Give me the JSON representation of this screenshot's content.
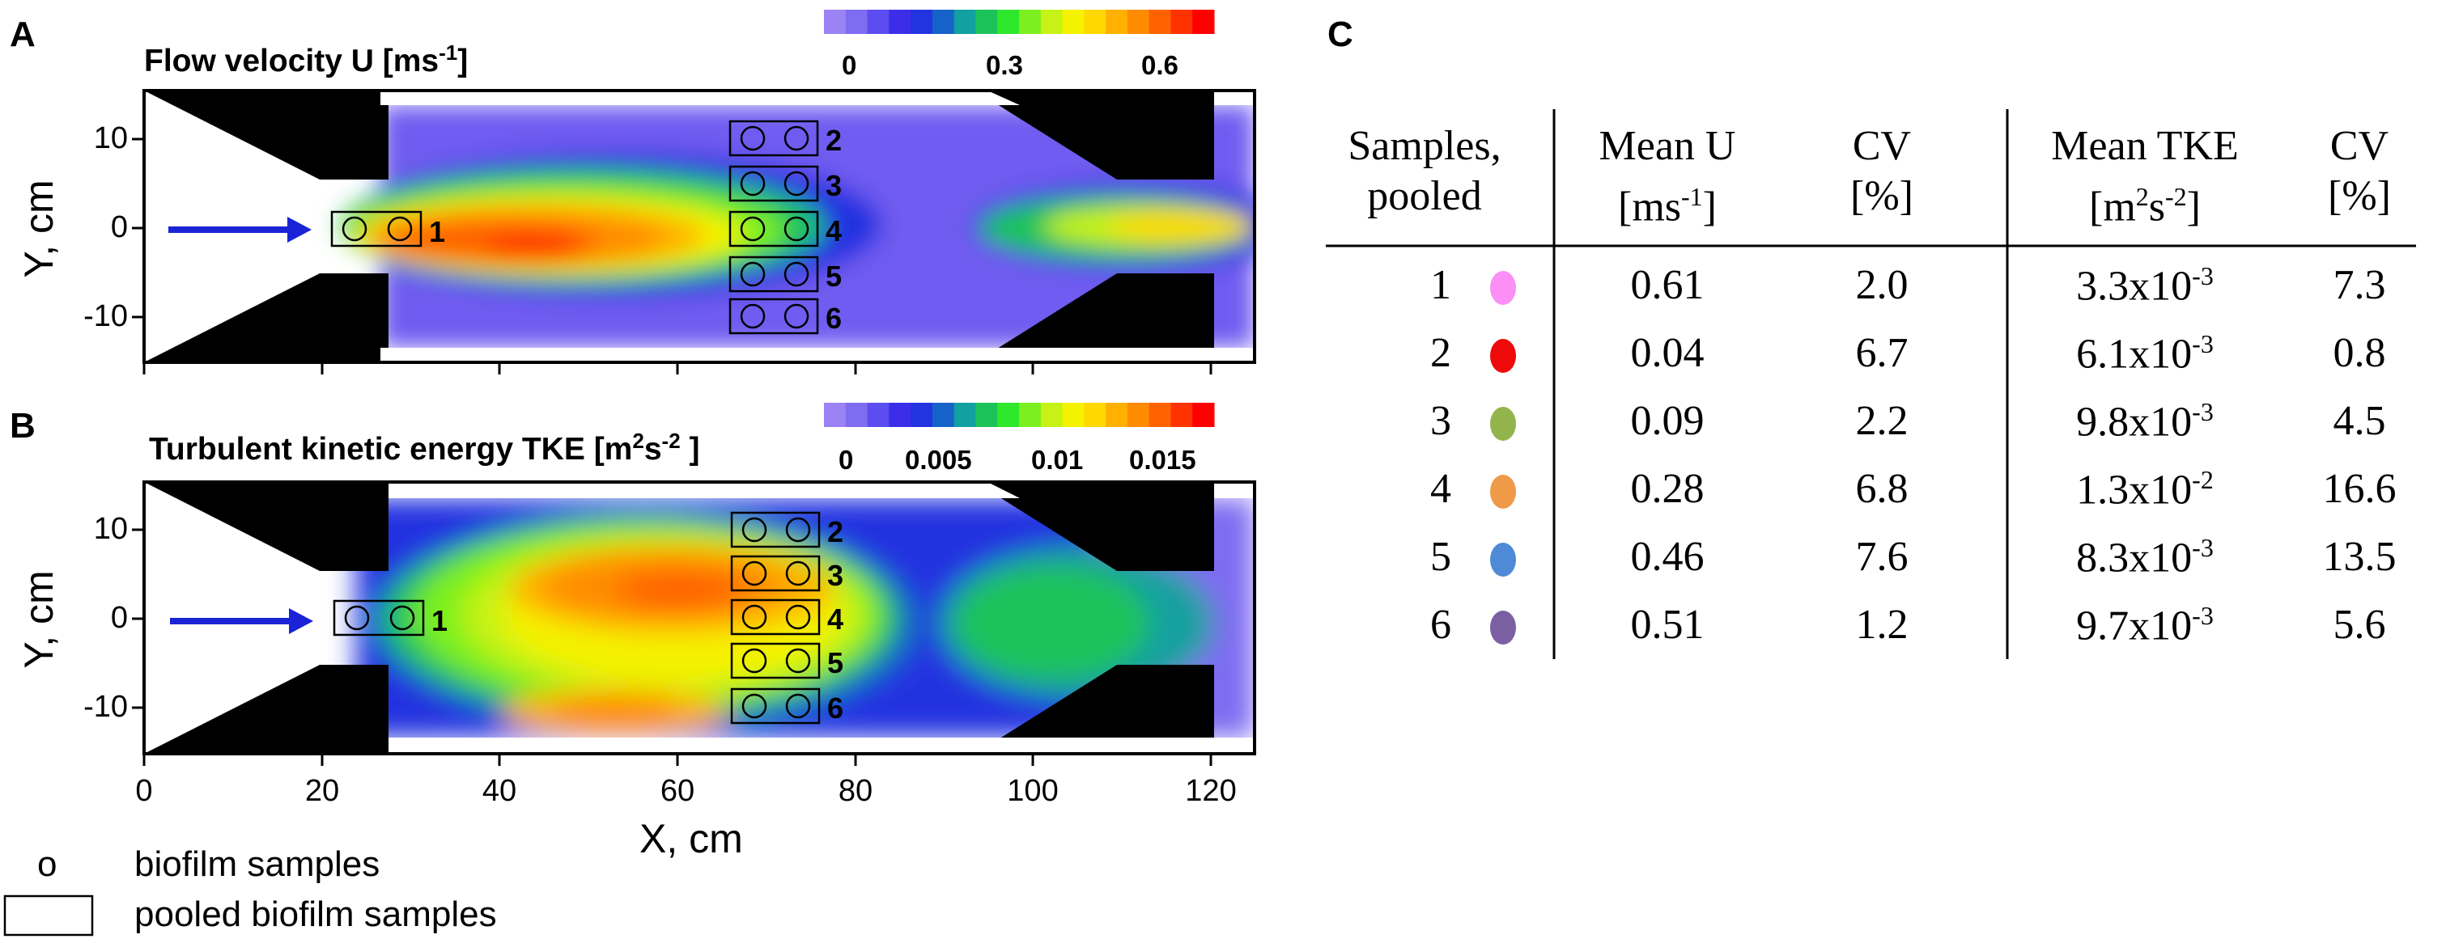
{
  "panels": {
    "A": {
      "letter": "A",
      "title_main": "Flow velocity U [ms",
      "title_sup": "-1",
      "title_end": "]",
      "colorbar_ticks": [
        "0",
        "0.3",
        "0.6"
      ],
      "colorbar_colors": [
        "#9b82f5",
        "#7e6cf1",
        "#5b4df0",
        "#3c2ee8",
        "#2233e0",
        "#1563c8",
        "#12a0a0",
        "#1cc35a",
        "#2ee82b",
        "#7cf01f",
        "#c6f215",
        "#f4f200",
        "#ffd800",
        "#ffb000",
        "#ff8c00",
        "#ff6200",
        "#ff3300",
        "#ff0000"
      ],
      "y_label": "Y, cm",
      "y_ticks": [
        "10",
        "0",
        "-10"
      ],
      "sample_labels": [
        "1",
        "2",
        "3",
        "4",
        "5",
        "6"
      ]
    },
    "B": {
      "letter": "B",
      "title_main": "Turbulent kinetic energy TKE [m",
      "title_sup1": "2",
      "title_mid": "s",
      "title_sup2": "-2",
      "title_end": " ]",
      "colorbar_ticks": [
        "0",
        "0.005",
        "0.01",
        "0.015"
      ],
      "colorbar_colors": [
        "#9b82f5",
        "#7e6cf1",
        "#5b4df0",
        "#3c2ee8",
        "#2233e0",
        "#1563c8",
        "#12a0a0",
        "#1cc35a",
        "#2ee82b",
        "#7cf01f",
        "#c6f215",
        "#f4f200",
        "#ffd800",
        "#ffb000",
        "#ff8c00",
        "#ff6200",
        "#ff3300",
        "#ff0000"
      ],
      "y_label": "Y, cm",
      "y_ticks": [
        "10",
        "0",
        "-10"
      ],
      "x_ticks": [
        "0",
        "20",
        "40",
        "60",
        "80",
        "100",
        "120"
      ],
      "x_label": "X, cm",
      "sample_labels": [
        "1",
        "2",
        "3",
        "4",
        "5",
        "6"
      ]
    },
    "C": {
      "letter": "C"
    }
  },
  "legend": {
    "circle_symbol": "o",
    "circle_text": "biofilm samples",
    "box_text": "pooled biofilm samples"
  },
  "chart_data": [
    {
      "type": "heatmap",
      "title": "Flow velocity U [ms-1]",
      "xlabel": "X, cm",
      "ylabel": "Y, cm",
      "xlim": [
        0,
        125
      ],
      "ylim": [
        -15,
        15
      ],
      "colorbar": {
        "min": 0,
        "max": 0.7,
        "ticks": [
          0,
          0.3,
          0.6
        ]
      },
      "samples": [
        {
          "id": "1",
          "x": 26,
          "y": 0
        },
        {
          "id": "2",
          "x": 71,
          "y": 10
        },
        {
          "id": "3",
          "x": 71,
          "y": 5
        },
        {
          "id": "4",
          "x": 71,
          "y": 0
        },
        {
          "id": "5",
          "x": 71,
          "y": -5
        },
        {
          "id": "6",
          "x": 71,
          "y": -10
        }
      ]
    },
    {
      "type": "heatmap",
      "title": "Turbulent kinetic energy TKE [m2s-2]",
      "xlabel": "X, cm",
      "ylabel": "Y, cm",
      "xlim": [
        0,
        125
      ],
      "ylim": [
        -15,
        15
      ],
      "colorbar": {
        "min": 0,
        "max": 0.02,
        "ticks": [
          0,
          0.005,
          0.01,
          0.015
        ]
      },
      "samples": [
        {
          "id": "1",
          "x": 26,
          "y": 0
        },
        {
          "id": "2",
          "x": 71,
          "y": 10
        },
        {
          "id": "3",
          "x": 71,
          "y": 5
        },
        {
          "id": "4",
          "x": 71,
          "y": 0
        },
        {
          "id": "5",
          "x": 71,
          "y": -5
        },
        {
          "id": "6",
          "x": 71,
          "y": -10
        }
      ]
    },
    {
      "type": "table",
      "headers": {
        "samples": [
          "Samples,",
          "pooled"
        ],
        "mean_u": [
          "Mean U",
          "[ms",
          "-1",
          "]"
        ],
        "cv1": [
          "CV",
          "[%]"
        ],
        "mean_tke": [
          "Mean TKE",
          "[m",
          "2",
          "s",
          "-2",
          "]"
        ],
        "cv2": [
          "CV",
          "[%]"
        ]
      },
      "rows": [
        {
          "sample": "1",
          "color": "#fb8ff5",
          "mean_u": "0.61",
          "cv_u": "2.0",
          "tke_mant": "3.3x10",
          "tke_exp": "-3",
          "cv_tke": "7.3"
        },
        {
          "sample": "2",
          "color": "#ee0a0a",
          "mean_u": "0.04",
          "cv_u": "6.7",
          "tke_mant": "6.1x10",
          "tke_exp": "-3",
          "cv_tke": "0.8"
        },
        {
          "sample": "3",
          "color": "#93b44c",
          "mean_u": "0.09",
          "cv_u": "2.2",
          "tke_mant": "9.8x10",
          "tke_exp": "-3",
          "cv_tke": "4.5"
        },
        {
          "sample": "4",
          "color": "#ef9a49",
          "mean_u": "0.28",
          "cv_u": "6.8",
          "tke_mant": "1.3x10",
          "tke_exp": "-2",
          "cv_tke": "16.6"
        },
        {
          "sample": "5",
          "color": "#4e8ad6",
          "mean_u": "0.46",
          "cv_u": "7.6",
          "tke_mant": "8.3x10",
          "tke_exp": "-3",
          "cv_tke": "13.5"
        },
        {
          "sample": "6",
          "color": "#7b5fa3",
          "mean_u": "0.51",
          "cv_u": "1.2",
          "tke_mant": "9.7x10",
          "tke_exp": "-3",
          "cv_tke": "5.6"
        }
      ]
    }
  ]
}
